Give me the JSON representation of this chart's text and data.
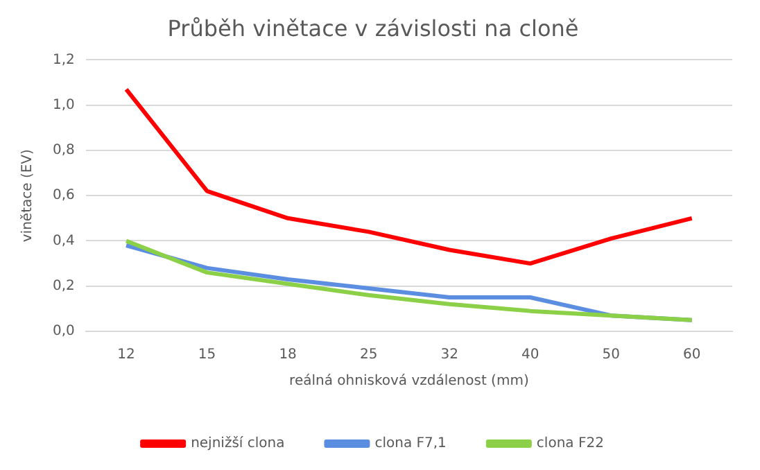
{
  "chart_data": {
    "type": "line",
    "title": "Průběh vinětace v závislosti na cloně",
    "xlabel": "reálná ohnisková vzdálenost (mm)",
    "ylabel": "vinětace (EV)",
    "categories": [
      "12",
      "15",
      "18",
      "25",
      "32",
      "40",
      "50",
      "60"
    ],
    "series": [
      {
        "name": "nejnižší clona",
        "color": "#ff0000",
        "values": [
          1.07,
          0.62,
          0.5,
          0.44,
          0.36,
          0.3,
          0.41,
          0.5
        ]
      },
      {
        "name": "clona F7,1",
        "color": "#5b8ee0",
        "values": [
          0.38,
          0.28,
          0.23,
          0.19,
          0.15,
          0.15,
          0.07,
          0.05
        ]
      },
      {
        "name": "clona F22",
        "color": "#8cd048",
        "values": [
          0.4,
          0.26,
          0.21,
          0.16,
          0.12,
          0.09,
          0.07,
          0.05
        ]
      }
    ],
    "ylim": [
      0,
      1.2
    ],
    "yticks": [
      {
        "value": 0,
        "label": "0,0"
      },
      {
        "value": 0.2,
        "label": "0,2"
      },
      {
        "value": 0.4,
        "label": "0,4"
      },
      {
        "value": 0.6,
        "label": "0,6"
      },
      {
        "value": 0.8,
        "label": "0,8"
      },
      {
        "value": 1,
        "label": "1,0"
      },
      {
        "value": 1.2,
        "label": "1,2"
      }
    ],
    "grid": "y",
    "legend": "bottom",
    "marker": "none",
    "line_style": "solid"
  }
}
